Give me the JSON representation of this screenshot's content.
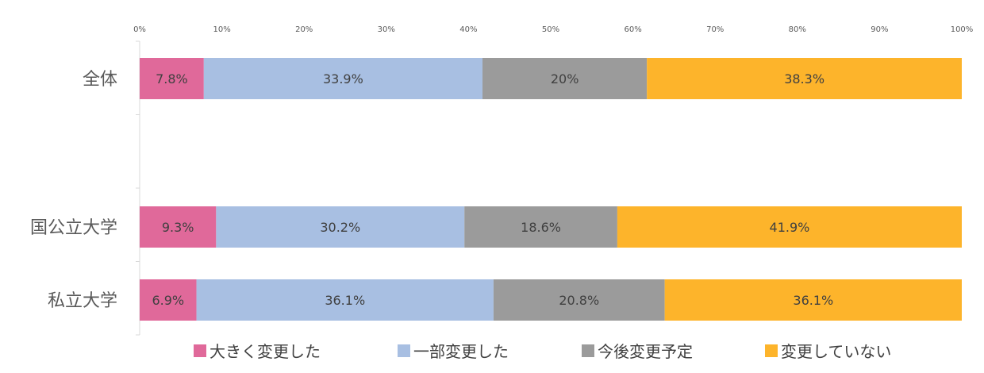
{
  "chart_data": {
    "type": "bar",
    "orientation": "horizontal",
    "stacked": "100%",
    "title": "",
    "xlabel": "",
    "ylabel": "",
    "xlim": [
      0,
      100
    ],
    "x_ticks": [
      "0%",
      "10%",
      "20%",
      "30%",
      "40%",
      "50%",
      "60%",
      "70%",
      "80%",
      "90%",
      "100%"
    ],
    "categories": [
      "全体",
      "",
      "国公立大学",
      "私立大学"
    ],
    "series": [
      {
        "name": "大きく変更した",
        "color": "#E0699A",
        "values": [
          7.8,
          null,
          9.3,
          6.9
        ],
        "labels": [
          "7.8%",
          "",
          "9.3%",
          "6.9%"
        ]
      },
      {
        "name": "一部変更した",
        "color": "#A8BFE2",
        "values": [
          33.9,
          null,
          30.2,
          36.1
        ],
        "labels": [
          "33.9%",
          "",
          "30.2%",
          "36.1%"
        ]
      },
      {
        "name": "今後変更予定",
        "color": "#9B9B9B",
        "values": [
          20,
          null,
          18.6,
          20.8
        ],
        "labels": [
          "20%",
          "",
          "18.6%",
          "20.8%"
        ]
      },
      {
        "name": "変更していない",
        "color": "#FDB42B",
        "values": [
          38.3,
          null,
          41.9,
          36.1
        ],
        "labels": [
          "38.3%",
          "",
          "41.9%",
          "36.1%"
        ]
      }
    ],
    "grid": false,
    "legend_position": "bottom"
  }
}
